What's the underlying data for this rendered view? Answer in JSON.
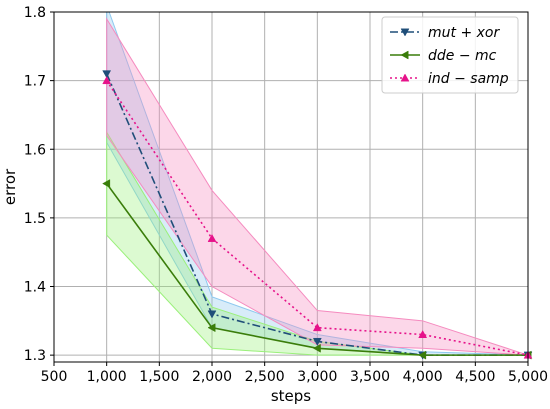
{
  "chart_data": {
    "type": "line",
    "xlabel": "steps",
    "ylabel": "error",
    "xlim": [
      500,
      5000
    ],
    "ylim": [
      1.29,
      1.8
    ],
    "x_ticks": [
      500,
      1000,
      1500,
      2000,
      2500,
      3000,
      3500,
      4000,
      4500,
      5000
    ],
    "x_tick_labels": [
      "500",
      "1,000",
      "1,500",
      "2,000",
      "2,500",
      "3,000",
      "3,500",
      "4,000",
      "4,500",
      "5,000"
    ],
    "y_ticks": [
      1.3,
      1.4,
      1.5,
      1.6,
      1.7,
      1.8
    ],
    "y_tick_labels": [
      "1.3",
      "1.4",
      "1.5",
      "1.6",
      "1.7",
      "1.8"
    ],
    "grid": true,
    "legend_position": "top-right",
    "x": [
      1000,
      2000,
      3000,
      4000,
      5000
    ],
    "series": [
      {
        "name": "mut + xor",
        "color": "#1f4e79",
        "band_color": "#8ec9ef",
        "marker": "triangle-down",
        "linestyle": "dash-dot",
        "values": [
          1.71,
          1.36,
          1.32,
          1.3,
          1.3
        ],
        "band_upper": [
          1.81,
          1.385,
          1.33,
          1.305,
          1.3
        ],
        "band_lower": [
          1.61,
          1.34,
          1.31,
          1.3,
          1.3
        ]
      },
      {
        "name": "dde − mc",
        "color": "#3a7d0a",
        "band_color": "#9af07a",
        "marker": "triangle-left",
        "linestyle": "solid",
        "values": [
          1.55,
          1.34,
          1.31,
          1.3,
          1.3
        ],
        "band_upper": [
          1.625,
          1.37,
          1.32,
          1.3,
          1.3
        ],
        "band_lower": [
          1.475,
          1.31,
          1.3,
          1.3,
          1.3
        ]
      },
      {
        "name": "ind − samp",
        "color": "#e6128a",
        "band_color": "#f58bbf",
        "marker": "triangle-up",
        "linestyle": "dotted",
        "values": [
          1.7,
          1.47,
          1.34,
          1.33,
          1.3
        ],
        "band_upper": [
          1.79,
          1.54,
          1.365,
          1.35,
          1.3
        ],
        "band_lower": [
          1.62,
          1.4,
          1.315,
          1.31,
          1.3
        ]
      }
    ]
  }
}
